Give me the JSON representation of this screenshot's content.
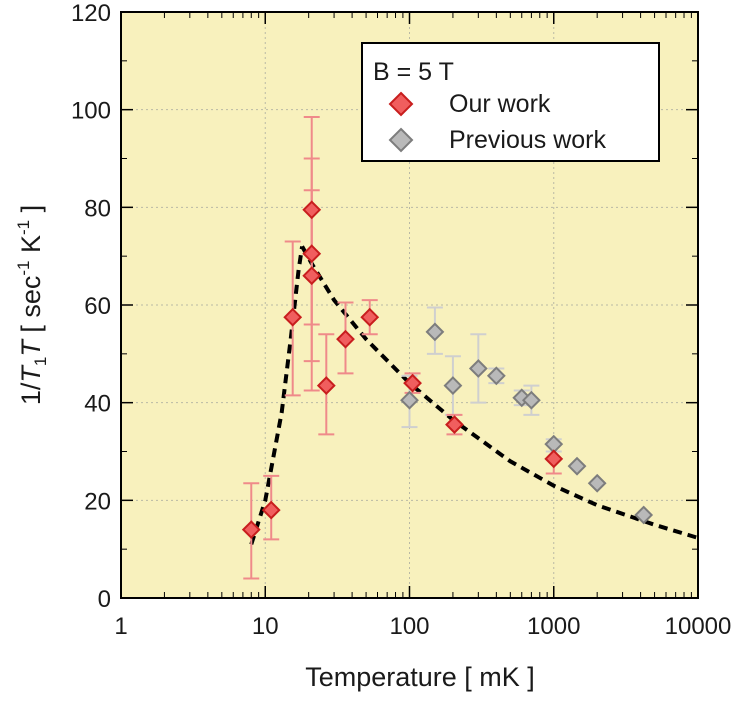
{
  "colors": {
    "plot_background": "#f8f1bd",
    "grid": "#b9b9a5",
    "our_work_fill": "#f05e5e",
    "our_work_edge": "#c81e1e",
    "our_work_errorbar": "#ef8a8a",
    "previous_work_fill": "#b9b9b9",
    "previous_work_edge": "#7d7d7d",
    "previous_work_errorbar": "#cfcfcf",
    "fit_line": "#000000"
  },
  "chart_data": {
    "type": "scatter",
    "x_scale": "log",
    "xlim": [
      1,
      10000
    ],
    "ylim": [
      0,
      120
    ],
    "grid": true,
    "legend_position": "top-right",
    "x_ticks": [
      "1",
      "10",
      "100",
      "1000",
      "10000"
    ],
    "y_ticks": [
      "0",
      "20",
      "40",
      "60",
      "80",
      "100",
      "120"
    ],
    "x_tick_values": [
      1,
      10,
      100,
      1000,
      10000
    ],
    "y_tick_values": [
      0,
      20,
      40,
      60,
      80,
      100,
      120
    ],
    "xlabel": "Temperature [ mK ]",
    "ylabel_parts": [
      "1/",
      "T",
      "1",
      "T",
      "  [ sec",
      "-1",
      "  K",
      "-1",
      " ]"
    ],
    "legend_title": "B = 5 T",
    "series": [
      {
        "name": "Our work",
        "marker": "diamond",
        "points": [
          {
            "x": 8,
            "y": 14,
            "err_low": 10,
            "err_high": 9.5
          },
          {
            "x": 11,
            "y": 18,
            "err_low": 6,
            "err_high": 7
          },
          {
            "x": 15.5,
            "y": 57.5,
            "err_low": 16,
            "err_high": 15.5
          },
          {
            "x": 21,
            "y": 79.5,
            "err_low": 37,
            "err_high": 19
          },
          {
            "x": 21,
            "y": 70.5,
            "err_low": 22,
            "err_high": 19.5
          },
          {
            "x": 21,
            "y": 66,
            "err_low": 10,
            "err_high": 17.5
          },
          {
            "x": 26.5,
            "y": 43.5,
            "err_low": 10,
            "err_high": 10.5
          },
          {
            "x": 36,
            "y": 53,
            "err_low": 7,
            "err_high": 7.5
          },
          {
            "x": 53,
            "y": 57.5,
            "err_low": 3.5,
            "err_high": 3.5
          },
          {
            "x": 105,
            "y": 44,
            "err_low": 2,
            "err_high": 2
          },
          {
            "x": 205,
            "y": 35.5,
            "err_low": 2,
            "err_high": 2
          },
          {
            "x": 1000,
            "y": 28.5,
            "err_low": 3,
            "err_high": 3
          }
        ]
      },
      {
        "name": "Previous work",
        "marker": "diamond",
        "points": [
          {
            "x": 100,
            "y": 40.5,
            "err_low": 5.5,
            "err_high": 5
          },
          {
            "x": 150,
            "y": 54.5,
            "err_low": 4.5,
            "err_high": 5
          },
          {
            "x": 200,
            "y": 43.5,
            "err_low": 6,
            "err_high": 6
          },
          {
            "x": 300,
            "y": 47,
            "err_low": 7,
            "err_high": 7
          },
          {
            "x": 400,
            "y": 45.5,
            "err_low": 1.5,
            "err_high": 1.5
          },
          {
            "x": 600,
            "y": 41,
            "err_low": 1.5,
            "err_high": 1.5
          },
          {
            "x": 700,
            "y": 40.5,
            "err_low": 3,
            "err_high": 3
          },
          {
            "x": 1000,
            "y": 31.5,
            "err_low": 1.5,
            "err_high": 1
          },
          {
            "x": 1450,
            "y": 27,
            "err_low": 0,
            "err_high": 0
          },
          {
            "x": 2000,
            "y": 23.5,
            "err_low": 0,
            "err_high": 0
          },
          {
            "x": 4200,
            "y": 17,
            "err_low": 0,
            "err_high": 0
          }
        ]
      }
    ],
    "fit_curve": {
      "style": "dashed",
      "segments": [
        [
          [
            8,
            11
          ],
          [
            10,
            20
          ],
          [
            13,
            38
          ],
          [
            15,
            53
          ],
          [
            17,
            67
          ],
          [
            18,
            72
          ]
        ],
        [
          [
            18,
            72
          ],
          [
            21,
            68.5
          ],
          [
            30,
            61
          ],
          [
            50,
            53
          ],
          [
            100,
            44
          ],
          [
            200,
            36.5
          ],
          [
            500,
            28
          ],
          [
            1000,
            23
          ],
          [
            2000,
            19
          ],
          [
            5000,
            15
          ],
          [
            10000,
            12.3
          ]
        ]
      ]
    }
  }
}
